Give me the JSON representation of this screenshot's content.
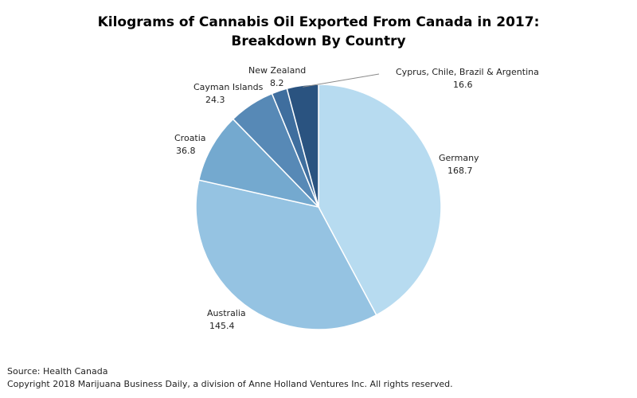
{
  "chart_data": {
    "type": "pie",
    "title_line1": "Kilograms of Cannabis Oil Exported From Canada in 2017:",
    "title_line2": "Breakdown By Country",
    "slices": [
      {
        "label": "Germany",
        "value": 168.7,
        "value_text": "168.7",
        "color": "#b7dbf0"
      },
      {
        "label": "Australia",
        "value": 145.4,
        "value_text": "145.4",
        "color": "#95c3e2"
      },
      {
        "label": "Croatia",
        "value": 36.8,
        "value_text": "36.8",
        "color": "#74a9cf"
      },
      {
        "label": "Cayman Islands",
        "value": 24.3,
        "value_text": "24.3",
        "color": "#5789b6"
      },
      {
        "label": "New Zealand",
        "value": 8.2,
        "value_text": "8.2",
        "color": "#3f6e9e"
      },
      {
        "label": "Cyprus, Chile, Brazil & Argentina",
        "value": 16.6,
        "value_text": "16.6",
        "color": "#2a5380"
      }
    ]
  },
  "footer": {
    "source": "Source: Health Canada",
    "copyright": "Copyright 2018 Marijuana Business Daily, a division of Anne Holland Ventures Inc. All rights reserved."
  }
}
